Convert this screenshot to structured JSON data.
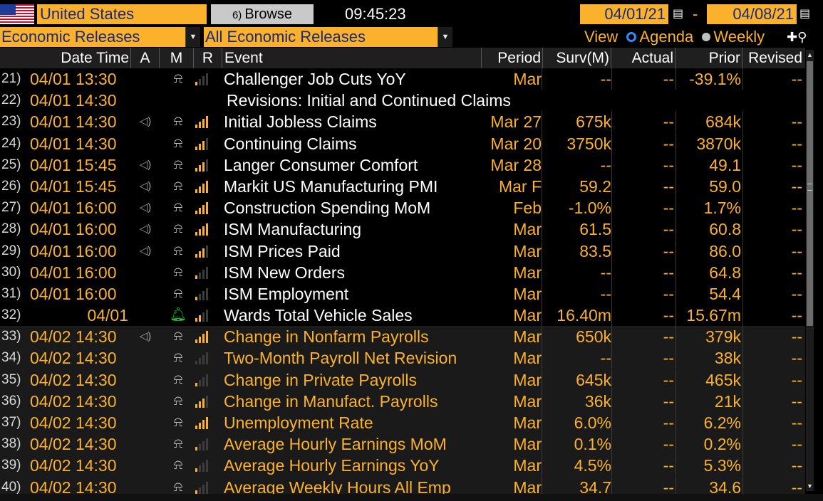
{
  "topbar": {
    "country": "United States",
    "browse_number": "6)",
    "browse_label": "Browse",
    "time": "09:45:23",
    "start_date": "04/01/21",
    "date_separator": "-",
    "end_date": "04/08/21"
  },
  "filters": {
    "category": "Economic Releases",
    "subcategory": "All Economic Releases",
    "view_label": "View",
    "view_agenda": "Agenda",
    "view_weekly": "Weekly"
  },
  "columns": {
    "datetime": "Date Time",
    "a": "A",
    "m": "M",
    "r": "R",
    "event": "Event",
    "period": "Period",
    "surv": "Surv(M)",
    "actual": "Actual",
    "prior": "Prior",
    "revised": "Revised"
  },
  "rows": [
    {
      "idx": "21)",
      "datetime": "04/01 13:30",
      "audio": false,
      "bell": "off",
      "rel": 1,
      "event": "Challenger Job Cuts YoY",
      "period": "Mar",
      "surv": "--",
      "actual": "--",
      "prior": "-39.1%",
      "revised": "--",
      "orange": false
    },
    {
      "idx": "22)",
      "datetime": "04/01 14:30",
      "header_row": true,
      "event": "Revisions: Initial and Continued Claims"
    },
    {
      "idx": "23)",
      "datetime": "04/01 14:30",
      "audio": true,
      "bell": "off",
      "rel": 4,
      "event": "Initial Jobless Claims",
      "period": "Mar 27",
      "surv": "675k",
      "actual": "--",
      "prior": "684k",
      "revised": "--",
      "orange": false
    },
    {
      "idx": "24)",
      "datetime": "04/01 14:30",
      "audio": false,
      "bell": "off",
      "rel": 3,
      "event": "Continuing Claims",
      "period": "Mar 20",
      "surv": "3750k",
      "actual": "--",
      "prior": "3870k",
      "revised": "--",
      "orange": false
    },
    {
      "idx": "25)",
      "datetime": "04/01 15:45",
      "audio": true,
      "bell": "off",
      "rel": 3,
      "event": "Langer Consumer Comfort",
      "period": "Mar 28",
      "surv": "--",
      "actual": "--",
      "prior": "49.1",
      "revised": "--",
      "orange": false
    },
    {
      "idx": "26)",
      "datetime": "04/01 15:45",
      "audio": true,
      "bell": "off",
      "rel": 4,
      "event": "Markit US Manufacturing PMI",
      "period": "Mar F",
      "surv": "59.2",
      "actual": "--",
      "prior": "59.0",
      "revised": "--",
      "orange": false
    },
    {
      "idx": "27)",
      "datetime": "04/01 16:00",
      "audio": true,
      "bell": "off",
      "rel": 4,
      "event": "Construction Spending MoM",
      "period": "Feb",
      "surv": "-1.0%",
      "actual": "--",
      "prior": "1.7%",
      "revised": "--",
      "orange": false
    },
    {
      "idx": "28)",
      "datetime": "04/01 16:00",
      "audio": true,
      "bell": "off",
      "rel": 4,
      "event": "ISM Manufacturing",
      "period": "Mar",
      "surv": "61.5",
      "actual": "--",
      "prior": "60.8",
      "revised": "--",
      "orange": false
    },
    {
      "idx": "29)",
      "datetime": "04/01 16:00",
      "audio": true,
      "bell": "off",
      "rel": 3,
      "event": "ISM Prices Paid",
      "period": "Mar",
      "surv": "83.5",
      "actual": "--",
      "prior": "86.0",
      "revised": "--",
      "orange": false
    },
    {
      "idx": "30)",
      "datetime": "04/01 16:00",
      "audio": false,
      "bell": "off",
      "rel": 1,
      "event": "ISM New Orders",
      "period": "Mar",
      "surv": "--",
      "actual": "--",
      "prior": "64.8",
      "revised": "--",
      "orange": false
    },
    {
      "idx": "31)",
      "datetime": "04/01 16:00",
      "audio": false,
      "bell": "off",
      "rel": 1,
      "event": "ISM Employment",
      "period": "Mar",
      "surv": "--",
      "actual": "--",
      "prior": "54.4",
      "revised": "--",
      "orange": false
    },
    {
      "idx": "32)",
      "datetime": "04/01",
      "date_right": true,
      "audio": false,
      "bell": "on",
      "rel": 2,
      "event": "Wards Total Vehicle Sales",
      "period": "Mar",
      "surv": "16.40m",
      "actual": "--",
      "prior": "15.67m",
      "revised": "--",
      "orange": false
    },
    {
      "idx": "33)",
      "datetime": "04/02 14:30",
      "audio": true,
      "bell": "off",
      "rel": 4,
      "event": "Change in Nonfarm Payrolls",
      "period": "Mar",
      "surv": "650k",
      "actual": "--",
      "prior": "379k",
      "revised": "--",
      "orange": true
    },
    {
      "idx": "34)",
      "datetime": "04/02 14:30",
      "audio": false,
      "bell": "off",
      "rel": 0,
      "event": "Two-Month Payroll Net Revision",
      "period": "Mar",
      "surv": "--",
      "actual": "--",
      "prior": "38k",
      "revised": "--",
      "orange": true
    },
    {
      "idx": "35)",
      "datetime": "04/02 14:30",
      "audio": false,
      "bell": "off",
      "rel": 1,
      "event": "Change in Private Payrolls",
      "period": "Mar",
      "surv": "645k",
      "actual": "--",
      "prior": "465k",
      "revised": "--",
      "orange": true
    },
    {
      "idx": "36)",
      "datetime": "04/02 14:30",
      "audio": false,
      "bell": "off",
      "rel": 3,
      "event": "Change in Manufact. Payrolls",
      "period": "Mar",
      "surv": "36k",
      "actual": "--",
      "prior": "21k",
      "revised": "--",
      "orange": true
    },
    {
      "idx": "37)",
      "datetime": "04/02 14:30",
      "audio": false,
      "bell": "off",
      "rel": 4,
      "event": "Unemployment Rate",
      "period": "Mar",
      "surv": "6.0%",
      "actual": "--",
      "prior": "6.2%",
      "revised": "--",
      "orange": true
    },
    {
      "idx": "38)",
      "datetime": "04/02 14:30",
      "audio": false,
      "bell": "off",
      "rel": 1,
      "event": "Average Hourly Earnings MoM",
      "period": "Mar",
      "surv": "0.1%",
      "actual": "--",
      "prior": "0.2%",
      "revised": "--",
      "orange": true
    },
    {
      "idx": "39)",
      "datetime": "04/02 14:30",
      "audio": false,
      "bell": "off",
      "rel": 1,
      "event": "Average Hourly Earnings YoY",
      "period": "Mar",
      "surv": "4.5%",
      "actual": "--",
      "prior": "5.3%",
      "revised": "--",
      "orange": true
    },
    {
      "idx": "40)",
      "datetime": "04/02 14:30",
      "audio": false,
      "bell": "off",
      "rel": 1,
      "event": "Average Weekly Hours All Emp",
      "period": "Mar",
      "surv": "34.7",
      "actual": "--",
      "prior": "34.6",
      "revised": "--",
      "orange": true
    }
  ],
  "colors": {
    "amber": "#fbb12c",
    "navy_text": "#1a2a7a",
    "bell_active": "#19c23a",
    "radio_active": "#2d8cff"
  },
  "icons": {
    "audio": "speaker-icon",
    "bell": "bell-icon",
    "relevance": "signal-bars-icon",
    "calendar": "calendar-icon",
    "zoom": "zoom-icon"
  }
}
